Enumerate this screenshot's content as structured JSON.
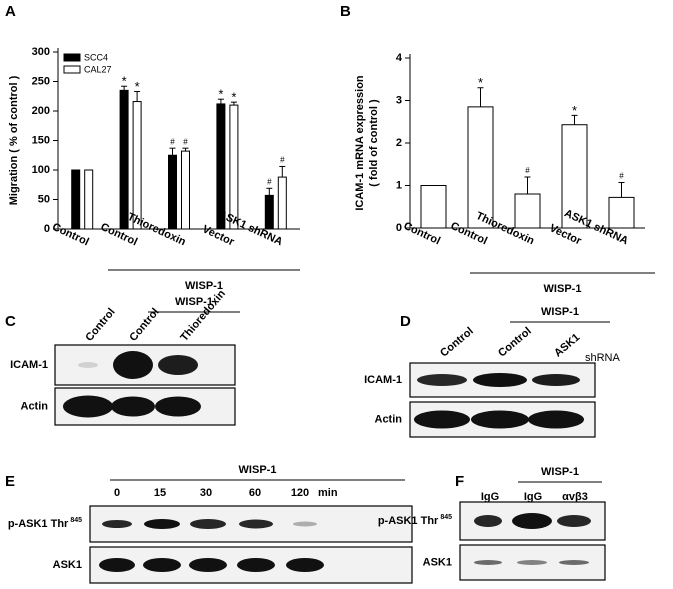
{
  "chart_data": [
    {
      "type": "bar",
      "panel": "A",
      "ylabel": "Migration ( % of control )",
      "categories": [
        "Control",
        "Control",
        "Thioredoxin",
        "Vector",
        "ASK1 shRNA"
      ],
      "group_label": "WISP-1",
      "series": [
        {
          "name": "SCC4",
          "color": "#000000",
          "values": [
            100,
            235,
            125,
            212,
            57
          ],
          "errors": [
            0,
            7,
            12,
            8,
            12
          ],
          "markers": [
            null,
            "*",
            "#",
            "*",
            "#"
          ]
        },
        {
          "name": "CAL27",
          "color": "#ffffff",
          "values": [
            100,
            216,
            132,
            210,
            88
          ],
          "errors": [
            0,
            17,
            5,
            5,
            18
          ],
          "markers": [
            null,
            "*",
            "#",
            "*",
            "#"
          ]
        }
      ],
      "ylim": [
        0,
        300
      ],
      "yticks": [
        0,
        50,
        100,
        150,
        200,
        250,
        300
      ],
      "legend": "top-left"
    },
    {
      "type": "bar",
      "panel": "B",
      "ylabel": [
        "ICAM-1 mRNA expression",
        "( fold of control )"
      ],
      "categories": [
        "Control",
        "Control",
        "Thioredoxin",
        "Vector",
        "ASK1 shRNA"
      ],
      "group_label": "WISP-1",
      "series": [
        {
          "name": null,
          "color": "#ffffff",
          "values": [
            1,
            2.85,
            0.8,
            2.43,
            0.72
          ],
          "errors": [
            0,
            0.45,
            0.4,
            0.22,
            0.35
          ],
          "markers": [
            null,
            "*",
            "#",
            "*",
            "#"
          ]
        }
      ],
      "ylim": [
        0,
        4
      ],
      "yticks": [
        0,
        1,
        2,
        3,
        4
      ]
    }
  ],
  "blots": [
    {
      "panel": "C",
      "group_label": "WISP-1",
      "lanes": [
        "Control",
        "Control",
        "Thioredoxin"
      ],
      "rows": [
        "ICAM-1",
        "Actin"
      ]
    },
    {
      "panel": "D",
      "group_label": "WISP-1",
      "lanes": [
        "Control",
        "Control",
        "ASK1"
      ],
      "lane_suffix": "shRNA",
      "rows": [
        "ICAM-1",
        "Actin"
      ]
    },
    {
      "panel": "E",
      "group_label": "WISP-1",
      "lanes": [
        "0",
        "15",
        "30",
        "60",
        "120"
      ],
      "unit": "min",
      "rows": [
        {
          "text": "p-ASK1 Thr",
          "sup": "845"
        },
        "ASK1"
      ]
    },
    {
      "panel": "F",
      "group_label": "WISP-1",
      "lanes": [
        "IgG",
        "IgG",
        "αvβ3"
      ],
      "rows": [
        {
          "text": "p-ASK1 Thr",
          "sup": "845"
        },
        "ASK1"
      ]
    }
  ]
}
